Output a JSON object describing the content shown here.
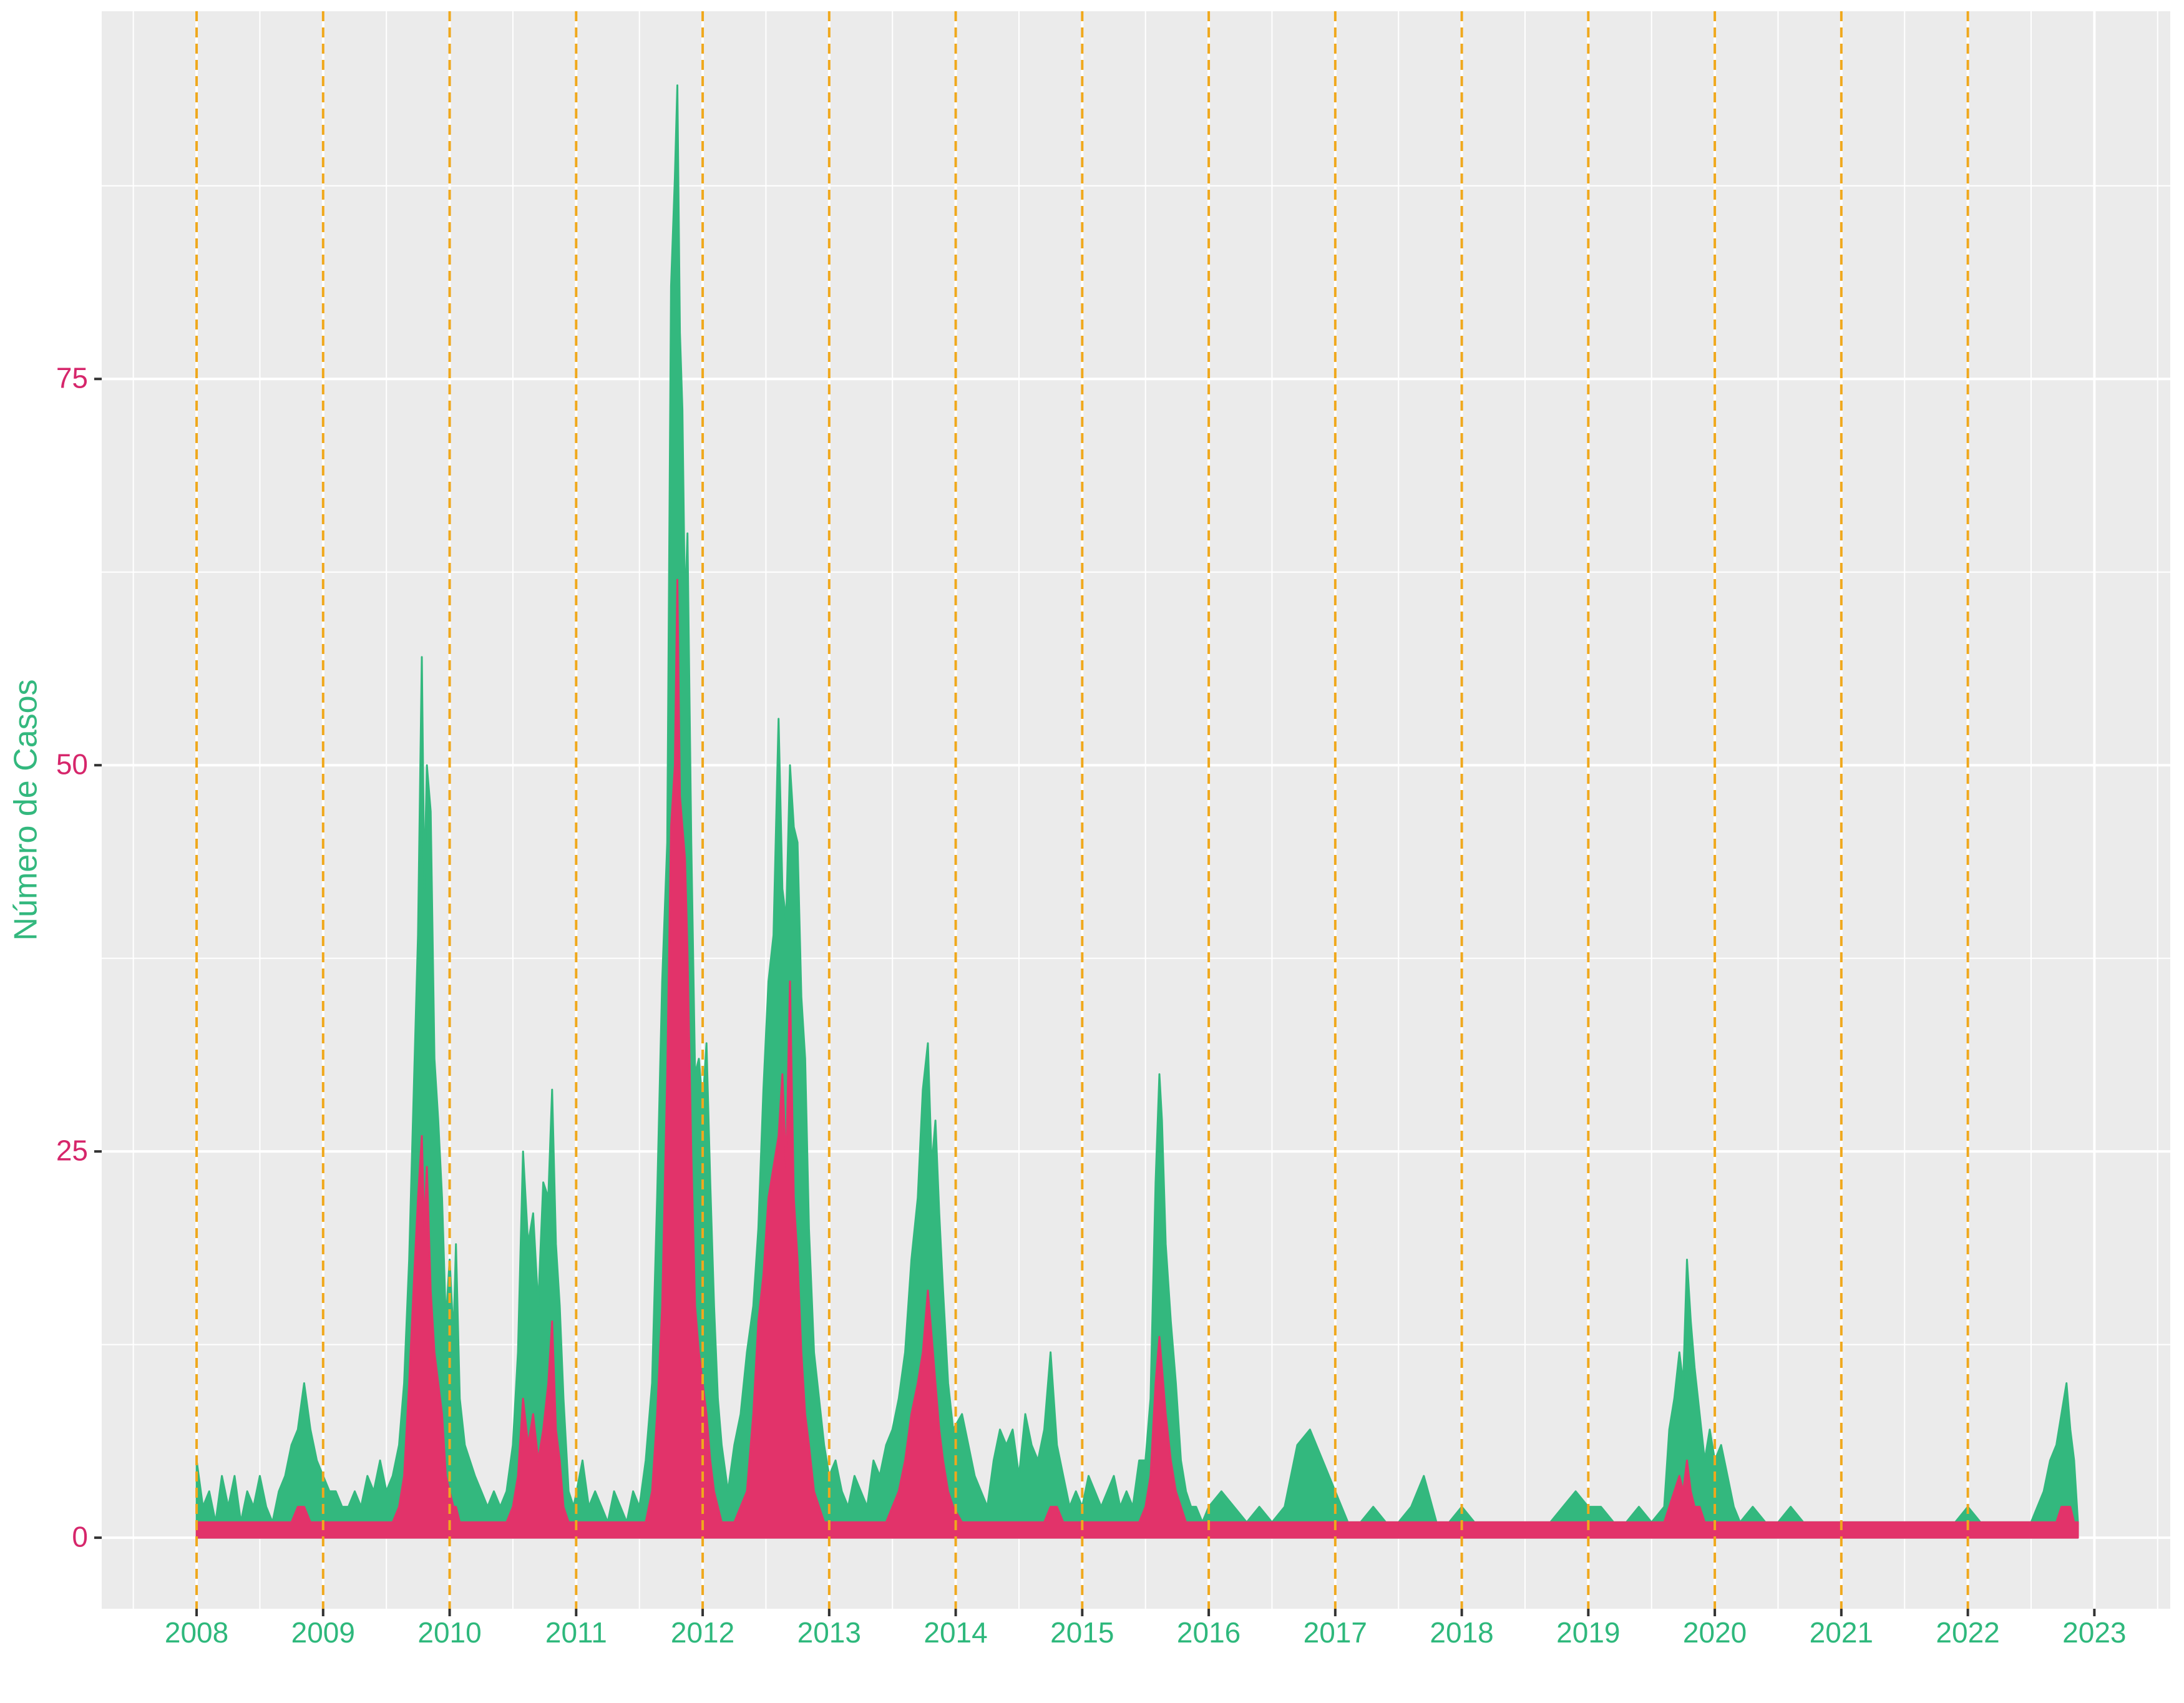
{
  "chart_data": {
    "type": "area",
    "y_label": "Número de Casos",
    "xlim": [
      2007.25,
      2023.6
    ],
    "ylim": [
      -4.6,
      98.8
    ],
    "xticks": [
      2008,
      2009,
      2010,
      2011,
      2012,
      2013,
      2014,
      2015,
      2016,
      2017,
      2018,
      2019,
      2020,
      2021,
      2022,
      2023
    ],
    "x_minor_grid": [
      2007.5,
      2008.5,
      2009.5,
      2010.5,
      2011.5,
      2012.5,
      2013.5,
      2014.5,
      2015.5,
      2016.5,
      2017.5,
      2018.5,
      2019.5,
      2020.5,
      2021.5,
      2022.5,
      2023.5
    ],
    "yticks": [
      0,
      25,
      50,
      75
    ],
    "y_minor_grid": [
      12.5,
      37.5,
      62.5,
      87.5
    ],
    "grid": true,
    "vlines": [
      2008,
      2009,
      2010,
      2011,
      2012,
      2013,
      2014,
      2015,
      2016,
      2017,
      2018,
      2019,
      2020,
      2021,
      2022
    ],
    "vline_color": "#f0a81c",
    "x": [
      2008,
      2008.05,
      2008.1,
      2008.15,
      2008.2,
      2008.25,
      2008.3,
      2008.35,
      2008.4,
      2008.45,
      2008.5,
      2008.55,
      2008.6,
      2008.65,
      2008.7,
      2008.75,
      2008.8,
      2008.85,
      2008.9,
      2008.95,
      2009,
      2009.05,
      2009.1,
      2009.15,
      2009.2,
      2009.25,
      2009.3,
      2009.35,
      2009.4,
      2009.45,
      2009.5,
      2009.55,
      2009.6,
      2009.64,
      2009.68,
      2009.72,
      2009.75,
      2009.78,
      2009.8,
      2009.82,
      2009.85,
      2009.88,
      2009.91,
      2009.94,
      2009.97,
      2010,
      2010.03,
      2010.05,
      2010.08,
      2010.12,
      2010.16,
      2010.2,
      2010.25,
      2010.3,
      2010.35,
      2010.4,
      2010.45,
      2010.5,
      2010.54,
      2010.58,
      2010.62,
      2010.66,
      2010.7,
      2010.74,
      2010.78,
      2010.81,
      2010.84,
      2010.87,
      2010.9,
      2010.94,
      2010.98,
      2011.05,
      2011.1,
      2011.15,
      2011.2,
      2011.25,
      2011.3,
      2011.35,
      2011.4,
      2011.45,
      2011.5,
      2011.55,
      2011.6,
      2011.64,
      2011.68,
      2011.72,
      2011.75,
      2011.78,
      2011.8,
      2011.82,
      2011.84,
      2011.86,
      2011.88,
      2011.91,
      2011.94,
      2011.97,
      2012,
      2012.03,
      2012.06,
      2012.09,
      2012.12,
      2012.15,
      2012.2,
      2012.25,
      2012.3,
      2012.35,
      2012.4,
      2012.44,
      2012.48,
      2012.52,
      2012.56,
      2012.6,
      2012.63,
      2012.66,
      2012.69,
      2012.72,
      2012.75,
      2012.78,
      2012.81,
      2012.84,
      2012.88,
      2012.92,
      2012.96,
      2013,
      2013.05,
      2013.1,
      2013.15,
      2013.2,
      2013.25,
      2013.3,
      2013.35,
      2013.4,
      2013.45,
      2013.5,
      2013.55,
      2013.6,
      2013.65,
      2013.7,
      2013.74,
      2013.78,
      2013.81,
      2013.84,
      2013.87,
      2013.9,
      2013.94,
      2013.98,
      2014.05,
      2014.1,
      2014.15,
      2014.2,
      2014.25,
      2014.3,
      2014.35,
      2014.4,
      2014.45,
      2014.5,
      2014.55,
      2014.6,
      2014.65,
      2014.7,
      2014.75,
      2014.8,
      2014.85,
      2014.9,
      2014.95,
      2015,
      2015.05,
      2015.1,
      2015.15,
      2015.2,
      2015.25,
      2015.3,
      2015.35,
      2015.4,
      2015.45,
      2015.5,
      2015.54,
      2015.58,
      2015.61,
      2015.63,
      2015.66,
      2015.7,
      2015.74,
      2015.78,
      2015.82,
      2015.86,
      2015.9,
      2015.95,
      2016,
      2016.1,
      2016.2,
      2016.3,
      2016.4,
      2016.5,
      2016.6,
      2016.7,
      2016.8,
      2016.9,
      2017,
      2017.1,
      2017.2,
      2017.3,
      2017.4,
      2017.5,
      2017.6,
      2017.7,
      2017.8,
      2017.9,
      2018,
      2018.1,
      2018.2,
      2018.3,
      2018.4,
      2018.5,
      2018.6,
      2018.7,
      2018.8,
      2018.9,
      2019,
      2019.1,
      2019.2,
      2019.3,
      2019.4,
      2019.5,
      2019.6,
      2019.64,
      2019.68,
      2019.72,
      2019.75,
      2019.78,
      2019.81,
      2019.84,
      2019.88,
      2019.92,
      2019.96,
      2020,
      2020.05,
      2020.1,
      2020.15,
      2020.2,
      2020.3,
      2020.4,
      2020.5,
      2020.6,
      2020.7,
      2020.8,
      2020.9,
      2021,
      2021.1,
      2021.2,
      2021.3,
      2021.4,
      2021.5,
      2021.6,
      2021.7,
      2021.8,
      2021.9,
      2022,
      2022.1,
      2022.2,
      2022.3,
      2022.4,
      2022.5,
      2022.55,
      2022.6,
      2022.65,
      2022.7,
      2022.74,
      2022.78,
      2022.81,
      2022.84,
      2022.87
    ],
    "series": [
      {
        "color": "#33b87e",
        "values": [
          5,
          2,
          3,
          1,
          4,
          2,
          4,
          1,
          3,
          2,
          4,
          2,
          1,
          3,
          4,
          6,
          7,
          10,
          7,
          5,
          4,
          3,
          3,
          2,
          2,
          3,
          2,
          4,
          3,
          5,
          3,
          4,
          6,
          10,
          18,
          30,
          39,
          57,
          42,
          50,
          47,
          31,
          27,
          22,
          14,
          18,
          13,
          19,
          9,
          6,
          5,
          4,
          3,
          2,
          3,
          2,
          3,
          6,
          12,
          25,
          19,
          21,
          15,
          23,
          22,
          29,
          19,
          15,
          9,
          3,
          2,
          5,
          2,
          3,
          2,
          1,
          3,
          2,
          1,
          3,
          2,
          5,
          10,
          22,
          36,
          45,
          81,
          88,
          94,
          78,
          73,
          60,
          65,
          45,
          30,
          31,
          28,
          32,
          23,
          15,
          9,
          6,
          3,
          6,
          8,
          12,
          15,
          20,
          29,
          36,
          39,
          53,
          42,
          40,
          50,
          46,
          45,
          35,
          31,
          20,
          12,
          9,
          6,
          4,
          5,
          3,
          2,
          4,
          3,
          2,
          5,
          4,
          6,
          7,
          9,
          12,
          18,
          22,
          29,
          32,
          24,
          27,
          21,
          16,
          10,
          7,
          8,
          6,
          4,
          3,
          2,
          5,
          7,
          6,
          7,
          4,
          8,
          6,
          5,
          7,
          12,
          6,
          4,
          2,
          3,
          2,
          4,
          3,
          2,
          3,
          4,
          2,
          3,
          2,
          5,
          5,
          9,
          23,
          30,
          27,
          19,
          14,
          10,
          5,
          3,
          2,
          2,
          1,
          2,
          3,
          2,
          1,
          2,
          1,
          2,
          6,
          7,
          5,
          3,
          1,
          1,
          2,
          1,
          1,
          2,
          4,
          1,
          1,
          2,
          1,
          1,
          1,
          1,
          1,
          1,
          1,
          2,
          3,
          2,
          2,
          1,
          1,
          2,
          1,
          2,
          7,
          9,
          12,
          10,
          18,
          14,
          11,
          8,
          5,
          7,
          5,
          6,
          4,
          2,
          1,
          2,
          1,
          1,
          2,
          1,
          1,
          1,
          1,
          1,
          1,
          1,
          1,
          1,
          1,
          1,
          1,
          1,
          2,
          1,
          1,
          1,
          1,
          1,
          2,
          3,
          5,
          6,
          8,
          10,
          7,
          5,
          1
        ]
      },
      {
        "color": "#e2336a",
        "values": [
          1,
          1,
          1,
          1,
          1,
          1,
          1,
          1,
          1,
          1,
          1,
          1,
          1,
          1,
          1,
          1,
          2,
          2,
          1,
          1,
          1,
          1,
          1,
          1,
          1,
          1,
          1,
          1,
          1,
          1,
          1,
          1,
          2,
          4,
          10,
          17,
          22,
          26,
          20,
          24,
          16,
          12,
          10,
          8,
          4,
          3,
          2,
          2,
          1,
          1,
          1,
          1,
          1,
          1,
          1,
          1,
          1,
          2,
          4,
          9,
          6,
          8,
          5,
          7,
          10,
          14,
          7,
          5,
          2,
          1,
          1,
          1,
          1,
          1,
          1,
          1,
          1,
          1,
          1,
          1,
          1,
          1,
          3,
          8,
          15,
          30,
          46,
          50,
          62,
          48,
          46,
          44,
          38,
          25,
          15,
          12,
          10,
          8,
          5,
          3,
          2,
          1,
          1,
          1,
          2,
          3,
          8,
          14,
          17,
          22,
          24,
          26,
          30,
          24,
          36,
          22,
          18,
          12,
          8,
          6,
          3,
          2,
          1,
          1,
          1,
          1,
          1,
          1,
          1,
          1,
          1,
          1,
          1,
          2,
          3,
          5,
          8,
          10,
          12,
          16,
          13,
          10,
          7,
          5,
          3,
          2,
          1,
          1,
          1,
          1,
          1,
          1,
          1,
          1,
          1,
          1,
          1,
          1,
          1,
          1,
          2,
          2,
          1,
          1,
          1,
          1,
          1,
          1,
          1,
          1,
          1,
          1,
          1,
          1,
          1,
          2,
          4,
          10,
          13,
          11,
          8,
          5,
          3,
          2,
          1,
          1,
          1,
          1,
          1,
          1,
          1,
          1,
          1,
          1,
          1,
          1,
          1,
          1,
          1,
          1,
          1,
          1,
          1,
          1,
          1,
          1,
          1,
          1,
          1,
          1,
          1,
          1,
          1,
          1,
          1,
          1,
          1,
          1,
          1,
          1,
          1,
          1,
          1,
          1,
          1,
          2,
          3,
          4,
          3,
          5,
          3,
          2,
          2,
          1,
          1,
          1,
          1,
          1,
          1,
          1,
          1,
          1,
          1,
          1,
          1,
          1,
          1,
          1,
          1,
          1,
          1,
          1,
          1,
          1,
          1,
          1,
          1,
          1,
          1,
          1,
          1,
          1,
          1,
          1,
          1,
          1,
          1,
          2,
          2,
          2,
          1,
          1
        ]
      }
    ],
    "x_label_color": "#2eb87c",
    "y_label_color": "#d6266b"
  }
}
